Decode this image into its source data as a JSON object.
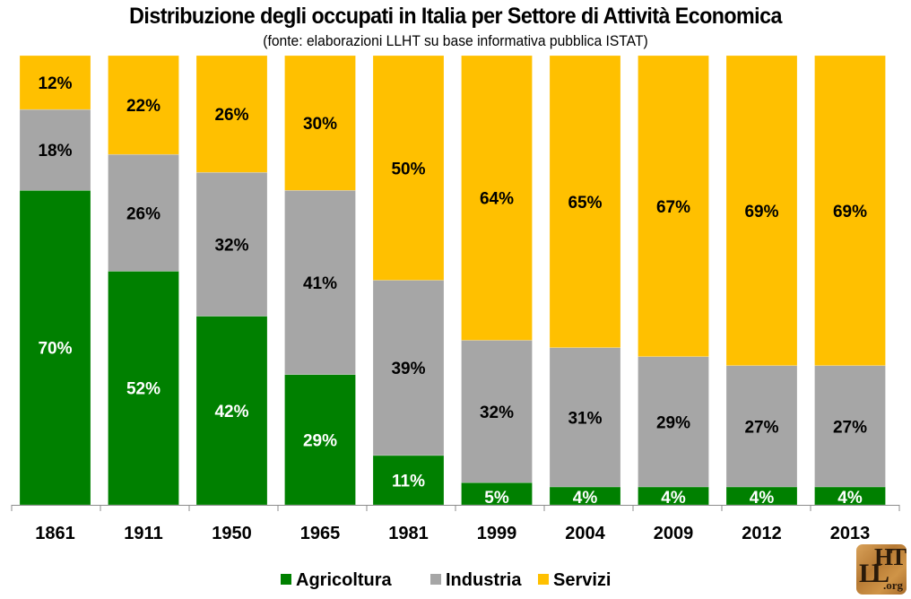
{
  "chart_data": {
    "type": "bar",
    "stacked": true,
    "title": "Distribuzione degli occupati in Italia per Settore di Attività Economica",
    "subtitle": "(fonte: elaborazioni LLHT su base informativa pubblica ISTAT)",
    "xlabel": "",
    "ylabel": "",
    "ylim": [
      0,
      100
    ],
    "grid": false,
    "legend_position": "bottom",
    "categories": [
      "1861",
      "1911",
      "1950",
      "1965",
      "1981",
      "1999",
      "2004",
      "2009",
      "2012",
      "2013"
    ],
    "series": [
      {
        "name": "Agricoltura",
        "color": "#008000",
        "label_color": "#ffffff",
        "values": [
          70,
          52,
          42,
          29,
          11,
          5,
          4,
          4,
          4,
          4
        ]
      },
      {
        "name": "Industria",
        "color": "#a6a6a6",
        "label_color": "#000000",
        "values": [
          18,
          26,
          32,
          41,
          39,
          32,
          31,
          29,
          27,
          27
        ]
      },
      {
        "name": "Servizi",
        "color": "#ffc000",
        "label_color": "#000000",
        "values": [
          12,
          22,
          26,
          30,
          50,
          64,
          65,
          67,
          69,
          69
        ]
      }
    ],
    "value_suffix": "%"
  },
  "logo": {
    "text_top": "HT",
    "text_left": "LL",
    "text_suffix": ".org"
  }
}
